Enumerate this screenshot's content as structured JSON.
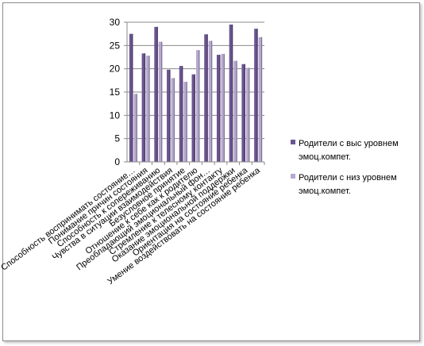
{
  "chart_data": {
    "type": "bar",
    "title": "",
    "xlabel": "",
    "ylabel": "",
    "ylim": [
      0,
      30
    ],
    "yticks": [
      0,
      5,
      10,
      15,
      20,
      25,
      30
    ],
    "grid": true,
    "legend_position": "right",
    "categories": [
      "Способность воспринимать состояние…",
      "Понимание причин состояния",
      "Способность к сопереживанию",
      "Чувства в ситуации взаимодействия",
      "Безусловное принятие",
      "Отношение к себе как к родителю",
      "Преобладающий эмоциональный фон…",
      "Стремление к телесному контакту",
      "Оказание эмоциональной поддержки",
      "Ориентация на состояние ребенка",
      "Умение воздействовать на состояние ребенка"
    ],
    "series": [
      {
        "name": "Родители с выс уровнем эмоц.компет.",
        "color": "#6b5590",
        "values": [
          27.5,
          23.3,
          29,
          19.8,
          20.6,
          18.8,
          27.4,
          23,
          29.5,
          21,
          28.6
        ]
      },
      {
        "name": "Родители с низ уровнем эмоц.компет.",
        "color": "#b6a8d0",
        "values": [
          14.6,
          22.8,
          25.8,
          18,
          17.2,
          24,
          26,
          23.2,
          21.7,
          20.2,
          26.8
        ]
      }
    ]
  }
}
